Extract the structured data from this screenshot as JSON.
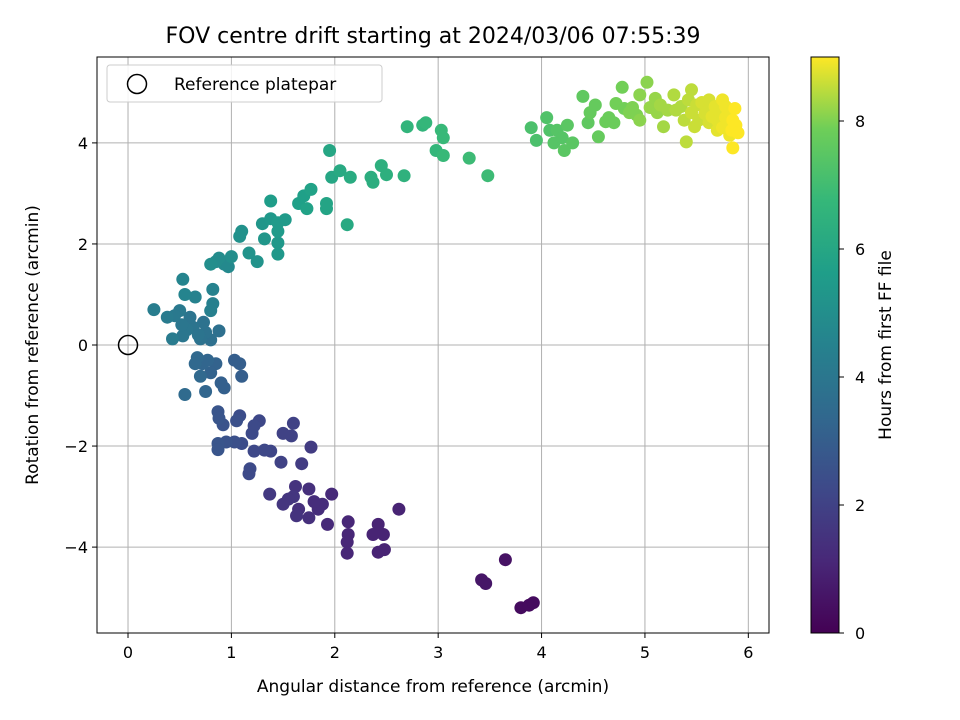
{
  "chart_data": {
    "type": "scatter",
    "title": "FOV centre drift starting at 2024/03/06 07:55:39",
    "xlabel": "Angular distance from reference (arcmin)",
    "ylabel": "Rotation from reference (arcmin)",
    "xlim": [
      -0.3,
      6.2
    ],
    "ylim": [
      -5.7,
      5.7
    ],
    "xticks": [
      0,
      1,
      2,
      3,
      4,
      5,
      6
    ],
    "yticks": [
      -4,
      -2,
      0,
      2,
      4
    ],
    "grid": true,
    "legend": {
      "placement": "top-left",
      "entries": [
        "Reference platepar"
      ]
    },
    "reference_point": {
      "x": 0,
      "y": 0,
      "label": "Reference platepar"
    },
    "colorbar": {
      "label": "Hours from first FF file",
      "range": [
        0,
        9
      ],
      "ticks": [
        0,
        2,
        4,
        6,
        8
      ],
      "colormap": "viridis"
    },
    "points": [
      [
        3.8,
        -5.2,
        0.3
      ],
      [
        3.88,
        -5.15,
        0.3
      ],
      [
        3.92,
        -5.1,
        0.3
      ],
      [
        3.65,
        -4.25,
        0.5
      ],
      [
        3.42,
        -4.65,
        0.6
      ],
      [
        3.46,
        -4.72,
        0.6
      ],
      [
        2.62,
        -3.25,
        1.0
      ],
      [
        2.48,
        -4.05,
        1.0
      ],
      [
        2.42,
        -4.1,
        1.0
      ],
      [
        2.47,
        -3.75,
        1.0
      ],
      [
        2.42,
        -3.55,
        1.0
      ],
      [
        2.37,
        -3.75,
        1.0
      ],
      [
        2.13,
        -3.5,
        1.1
      ],
      [
        2.13,
        -3.75,
        1.1
      ],
      [
        2.12,
        -3.9,
        1.1
      ],
      [
        2.12,
        -4.12,
        1.1
      ],
      [
        1.97,
        -2.95,
        1.2
      ],
      [
        1.93,
        -3.55,
        1.2
      ],
      [
        1.88,
        -3.15,
        1.3
      ],
      [
        1.84,
        -3.25,
        1.3
      ],
      [
        1.8,
        -3.1,
        1.3
      ],
      [
        1.75,
        -3.42,
        1.4
      ],
      [
        1.75,
        -2.85,
        1.4
      ],
      [
        1.65,
        -3.25,
        1.4
      ],
      [
        1.63,
        -3.38,
        1.5
      ],
      [
        1.62,
        -2.8,
        1.5
      ],
      [
        1.6,
        -3.0,
        1.6
      ],
      [
        1.55,
        -3.05,
        1.6
      ],
      [
        1.5,
        -3.15,
        1.6
      ],
      [
        1.37,
        -2.95,
        1.7
      ],
      [
        1.77,
        -2.02,
        1.8
      ],
      [
        1.68,
        -2.35,
        1.8
      ],
      [
        1.6,
        -1.55,
        2.0
      ],
      [
        1.58,
        -1.8,
        2.0
      ],
      [
        1.5,
        -1.75,
        2.0
      ],
      [
        1.48,
        -2.32,
        2.0
      ],
      [
        1.38,
        -2.1,
        2.1
      ],
      [
        1.32,
        -2.08,
        2.2
      ],
      [
        1.27,
        -1.5,
        2.2
      ],
      [
        1.22,
        -2.1,
        2.2
      ],
      [
        1.2,
        -1.75,
        2.3
      ],
      [
        1.22,
        -1.6,
        2.3
      ],
      [
        1.18,
        -2.45,
        2.3
      ],
      [
        1.17,
        -2.55,
        2.3
      ],
      [
        1.1,
        -1.95,
        2.4
      ],
      [
        1.08,
        -1.4,
        2.4
      ],
      [
        1.05,
        -1.5,
        2.5
      ],
      [
        1.03,
        -1.92,
        2.5
      ],
      [
        0.95,
        -1.92,
        2.6
      ],
      [
        0.92,
        -1.58,
        2.6
      ],
      [
        0.87,
        -1.32,
        2.7
      ],
      [
        0.88,
        -1.45,
        2.7
      ],
      [
        0.87,
        -1.95,
        2.7
      ],
      [
        0.87,
        -2.07,
        2.7
      ],
      [
        1.1,
        -0.62,
        3.0
      ],
      [
        1.08,
        -0.37,
        3.0
      ],
      [
        1.03,
        -0.3,
        3.0
      ],
      [
        0.93,
        -0.85,
        3.1
      ],
      [
        0.9,
        -0.75,
        3.1
      ],
      [
        0.85,
        -0.37,
        3.2
      ],
      [
        0.8,
        -0.55,
        3.2
      ],
      [
        0.77,
        -0.3,
        3.3
      ],
      [
        0.75,
        -0.92,
        3.3
      ],
      [
        0.72,
        -0.37,
        3.3
      ],
      [
        0.7,
        -0.62,
        3.4
      ],
      [
        0.67,
        -0.25,
        3.4
      ],
      [
        0.65,
        -0.37,
        3.4
      ],
      [
        0.55,
        -0.98,
        3.5
      ],
      [
        0.88,
        0.28,
        3.7
      ],
      [
        0.8,
        0.1,
        3.7
      ],
      [
        0.75,
        0.25,
        3.8
      ],
      [
        0.73,
        0.45,
        3.8
      ],
      [
        0.7,
        0.12,
        3.8
      ],
      [
        0.68,
        0.2,
        3.9
      ],
      [
        0.63,
        0.35,
        3.9
      ],
      [
        0.6,
        0.55,
        3.9
      ],
      [
        0.57,
        0.3,
        4.0
      ],
      [
        0.53,
        0.18,
        4.0
      ],
      [
        0.52,
        0.4,
        4.0
      ],
      [
        0.5,
        0.68,
        4.1
      ],
      [
        0.45,
        0.58,
        4.1
      ],
      [
        0.43,
        0.12,
        4.2
      ],
      [
        0.38,
        0.55,
        4.2
      ],
      [
        0.25,
        0.7,
        4.3
      ],
      [
        0.82,
        0.82,
        4.4
      ],
      [
        0.8,
        0.68,
        4.4
      ],
      [
        0.82,
        1.1,
        4.5
      ],
      [
        0.65,
        0.95,
        4.5
      ],
      [
        0.55,
        1.0,
        4.6
      ],
      [
        0.53,
        1.3,
        4.6
      ],
      [
        0.97,
        1.55,
        4.8
      ],
      [
        0.93,
        1.6,
        4.8
      ],
      [
        0.88,
        1.72,
        4.9
      ],
      [
        0.85,
        1.65,
        4.9
      ],
      [
        0.8,
        1.6,
        5.0
      ],
      [
        1.0,
        1.75,
        5.0
      ],
      [
        1.08,
        2.15,
        5.1
      ],
      [
        1.1,
        2.25,
        5.1
      ],
      [
        1.17,
        1.82,
        5.2
      ],
      [
        1.25,
        1.65,
        5.2
      ],
      [
        1.32,
        2.1,
        5.3
      ],
      [
        1.3,
        2.4,
        5.3
      ],
      [
        1.38,
        2.5,
        5.4
      ],
      [
        1.45,
        1.8,
        5.4
      ],
      [
        1.45,
        2.02,
        5.4
      ],
      [
        1.45,
        2.25,
        5.5
      ],
      [
        1.45,
        2.42,
        5.5
      ],
      [
        1.52,
        2.48,
        5.5
      ],
      [
        1.38,
        2.85,
        5.6
      ],
      [
        1.65,
        2.8,
        5.7
      ],
      [
        1.7,
        2.95,
        5.7
      ],
      [
        1.73,
        2.7,
        5.8
      ],
      [
        1.77,
        3.08,
        5.8
      ],
      [
        1.92,
        2.7,
        5.9
      ],
      [
        1.92,
        2.8,
        5.9
      ],
      [
        1.95,
        3.85,
        6.0
      ],
      [
        1.97,
        3.32,
        6.0
      ],
      [
        2.05,
        3.45,
        6.1
      ],
      [
        2.12,
        2.38,
        6.1
      ],
      [
        2.15,
        3.32,
        6.2
      ],
      [
        2.35,
        3.32,
        6.3
      ],
      [
        2.37,
        3.22,
        6.3
      ],
      [
        2.45,
        3.55,
        6.4
      ],
      [
        2.5,
        3.37,
        6.4
      ],
      [
        2.67,
        3.35,
        6.5
      ],
      [
        2.7,
        4.32,
        6.6
      ],
      [
        2.85,
        4.35,
        6.6
      ],
      [
        2.88,
        4.4,
        6.7
      ],
      [
        2.98,
        3.85,
        6.7
      ],
      [
        3.03,
        4.25,
        6.8
      ],
      [
        3.05,
        3.75,
        6.8
      ],
      [
        3.05,
        4.1,
        6.8
      ],
      [
        3.3,
        3.7,
        6.9
      ],
      [
        3.48,
        3.35,
        6.9
      ],
      [
        3.9,
        4.3,
        7.2
      ],
      [
        3.95,
        4.05,
        7.2
      ],
      [
        4.05,
        4.5,
        7.3
      ],
      [
        4.08,
        4.25,
        7.3
      ],
      [
        4.12,
        4.0,
        7.4
      ],
      [
        4.15,
        4.25,
        7.4
      ],
      [
        4.2,
        4.1,
        7.4
      ],
      [
        4.22,
        3.85,
        7.5
      ],
      [
        4.25,
        4.35,
        7.5
      ],
      [
        4.3,
        4.0,
        7.5
      ],
      [
        4.4,
        4.92,
        7.6
      ],
      [
        4.45,
        4.4,
        7.6
      ],
      [
        4.47,
        4.6,
        7.7
      ],
      [
        4.52,
        4.75,
        7.7
      ],
      [
        4.55,
        4.12,
        7.7
      ],
      [
        4.62,
        4.42,
        7.8
      ],
      [
        4.65,
        4.5,
        7.8
      ],
      [
        4.7,
        4.4,
        7.8
      ],
      [
        4.72,
        4.78,
        7.9
      ],
      [
        4.78,
        5.1,
        7.9
      ],
      [
        4.8,
        4.68,
        7.9
      ],
      [
        4.85,
        4.6,
        8.0
      ],
      [
        4.88,
        4.7,
        8.0
      ],
      [
        4.92,
        4.55,
        8.0
      ],
      [
        4.95,
        4.45,
        8.1
      ],
      [
        4.95,
        4.95,
        8.1
      ],
      [
        5.02,
        5.2,
        8.1
      ],
      [
        5.05,
        4.7,
        8.2
      ],
      [
        5.1,
        4.88,
        8.2
      ],
      [
        5.12,
        4.6,
        8.2
      ],
      [
        5.15,
        4.75,
        8.3
      ],
      [
        5.18,
        4.32,
        8.3
      ],
      [
        5.22,
        4.65,
        8.3
      ],
      [
        5.28,
        4.95,
        8.4
      ],
      [
        5.3,
        4.65,
        8.4
      ],
      [
        5.35,
        4.72,
        8.4
      ],
      [
        5.38,
        4.45,
        8.5
      ],
      [
        5.4,
        4.02,
        8.5
      ],
      [
        5.42,
        4.85,
        8.5
      ],
      [
        5.45,
        5.05,
        8.5
      ],
      [
        5.45,
        4.6,
        8.6
      ],
      [
        5.48,
        4.32,
        8.6
      ],
      [
        5.5,
        4.75,
        8.6
      ],
      [
        5.52,
        4.45,
        8.6
      ],
      [
        5.55,
        4.8,
        8.7
      ],
      [
        5.58,
        4.58,
        8.7
      ],
      [
        5.6,
        4.62,
        8.7
      ],
      [
        5.62,
        4.4,
        8.7
      ],
      [
        5.62,
        4.85,
        8.7
      ],
      [
        5.65,
        4.52,
        8.8
      ],
      [
        5.68,
        4.72,
        8.8
      ],
      [
        5.7,
        4.45,
        8.8
      ],
      [
        5.7,
        4.25,
        8.8
      ],
      [
        5.72,
        4.62,
        8.8
      ],
      [
        5.75,
        4.85,
        8.9
      ],
      [
        5.75,
        4.3,
        8.9
      ],
      [
        5.78,
        4.5,
        8.9
      ],
      [
        5.78,
        4.72,
        8.9
      ],
      [
        5.8,
        4.4,
        8.9
      ],
      [
        5.82,
        4.15,
        8.9
      ],
      [
        5.82,
        4.62,
        8.9
      ],
      [
        5.84,
        4.25,
        9.0
      ],
      [
        5.85,
        4.45,
        9.0
      ],
      [
        5.85,
        3.9,
        9.0
      ],
      [
        5.87,
        4.68,
        9.0
      ],
      [
        5.88,
        4.35,
        9.0
      ],
      [
        5.9,
        4.2,
        9.0
      ]
    ]
  }
}
